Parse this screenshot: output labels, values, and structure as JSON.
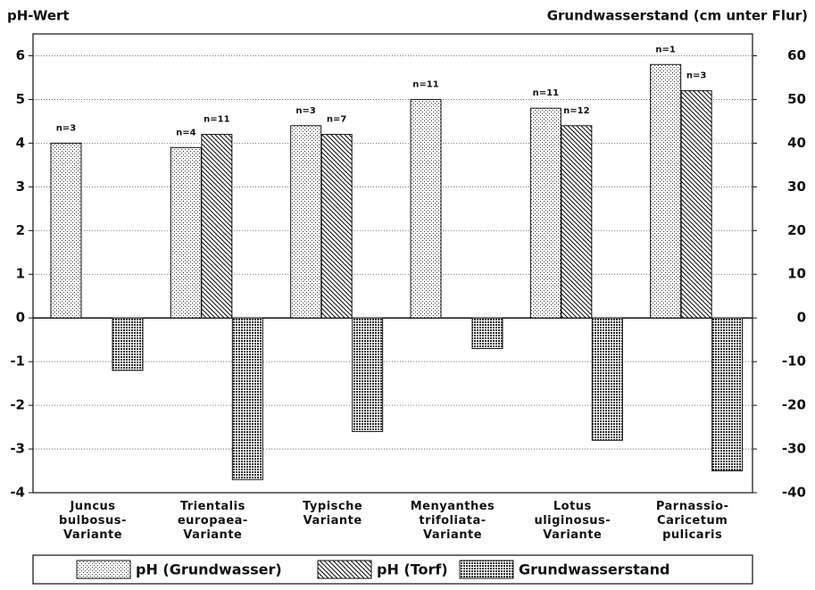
{
  "chart_data": {
    "type": "bar",
    "y_label": "pH-Wert",
    "y2_label": "Grundwasserstand (cm unter Flur)",
    "categories": [
      "Juncus\nbulbosus-\nVariante",
      "Trientalis\neuropaea-\nVariante",
      "Typische\nVariante",
      "Menyanthes\ntrifoliata-\nVariante",
      "Lotus\nuliginosus-\nVariante",
      "Parnassio-\nCaricetum\npulicaris"
    ],
    "series": [
      {
        "name": "pH (Grundwasser)",
        "pattern": "dots",
        "values": [
          4.0,
          3.9,
          4.4,
          5.0,
          4.8,
          5.8
        ],
        "n_labels": [
          "n=3",
          "n=4",
          "n=3",
          "n=11",
          "n=11",
          "n=1"
        ]
      },
      {
        "name": "pH (Torf)",
        "pattern": "hatch",
        "values": [
          null,
          4.2,
          4.2,
          null,
          4.4,
          5.2
        ],
        "n_labels": [
          null,
          "n=11",
          "n=7",
          null,
          "n=12",
          "n=3"
        ]
      },
      {
        "name": "Grundwasserstand",
        "pattern": "dense",
        "axis": "y2",
        "values": [
          -12,
          -37,
          -26,
          -7,
          -28,
          -35
        ]
      }
    ],
    "ylim": [
      -4,
      6.5
    ],
    "yticks": [
      -4,
      -3,
      -2,
      -1,
      0,
      1,
      2,
      3,
      4,
      5,
      6
    ],
    "y2lim": [
      -40,
      65
    ],
    "y2ticks": [
      -40,
      -30,
      -20,
      -10,
      0,
      10,
      20,
      30,
      40,
      50,
      60
    ],
    "grid": true
  }
}
